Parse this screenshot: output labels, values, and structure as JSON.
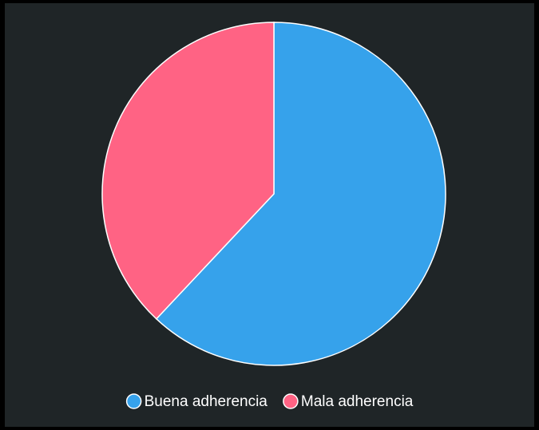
{
  "chart_data": {
    "type": "pie",
    "categories": [
      "Buena adherencia",
      "Mala adherencia"
    ],
    "values": [
      62,
      38
    ],
    "colors": [
      "#36a2eb",
      "#ff6384"
    ],
    "legend": "bottom"
  }
}
